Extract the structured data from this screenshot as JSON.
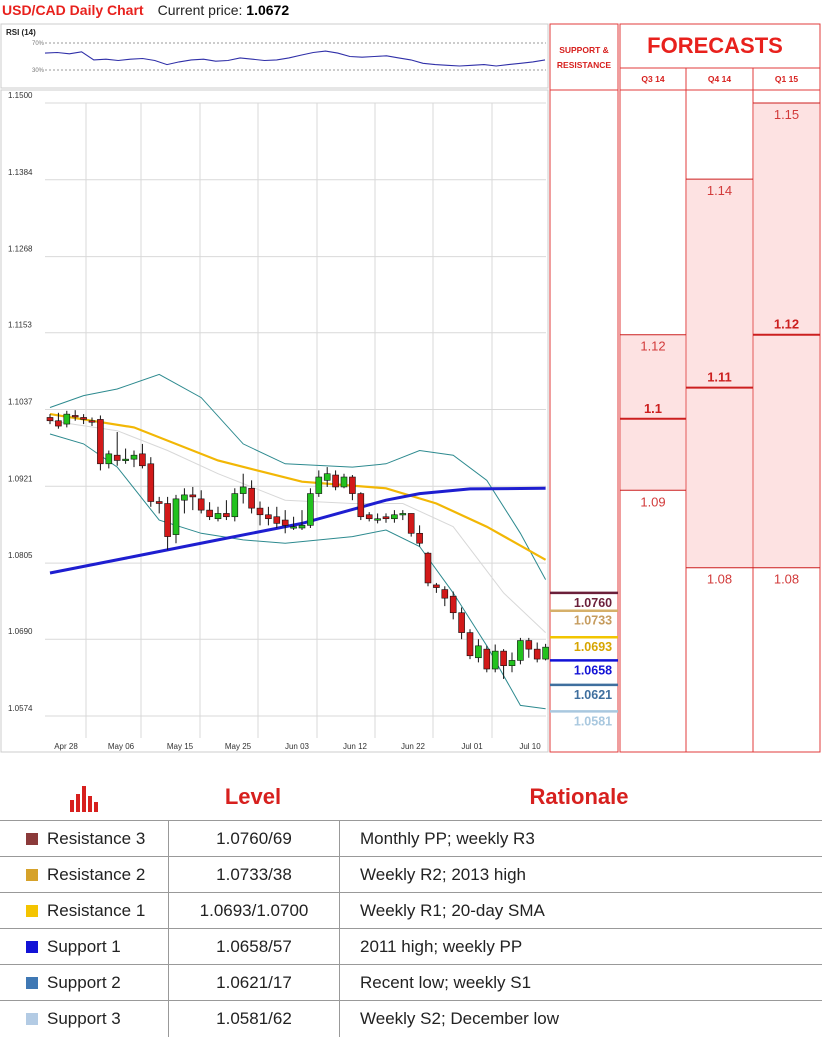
{
  "header": {
    "title": "USD/CAD Daily Chart",
    "price_label": "Current price: ",
    "price_value": "1.0672"
  },
  "rsi": {
    "label": "RSI (14)",
    "level_high": "70%",
    "level_low": "30%"
  },
  "panel": {
    "sr_title_line1": "SUPPORT &",
    "sr_title_line2": "RESISTANCE",
    "forecasts_title": "FORECASTS"
  },
  "chart_data": {
    "type": "candlestick",
    "y_ticks": [
      "1.1500",
      "1.1384",
      "1.1268",
      "1.1153",
      "1.1037",
      "1.0921",
      "1.0805",
      "1.0690",
      "1.0574"
    ],
    "ylim": [
      1.0557,
      1.1515
    ],
    "x_labels": [
      "Apr 28",
      "May 06",
      "May 15",
      "May 25",
      "Jun 03",
      "Jun 12",
      "Jun 22",
      "Jul 01",
      "Jul 10"
    ],
    "candles": [
      [
        1.1025,
        1.103,
        1.1015,
        1.102
      ],
      [
        1.102,
        1.1032,
        1.1008,
        1.1012
      ],
      [
        1.1015,
        1.1035,
        1.101,
        1.103
      ],
      [
        1.1028,
        1.1036,
        1.102,
        1.1026
      ],
      [
        1.1025,
        1.103,
        1.1015,
        1.1022
      ],
      [
        1.102,
        1.1025,
        1.1012,
        1.1018
      ],
      [
        1.1022,
        1.1028,
        1.0945,
        1.0955
      ],
      [
        1.0955,
        1.0975,
        1.0948,
        1.097
      ],
      [
        1.0968,
        1.1003,
        1.0952,
        1.096
      ],
      [
        1.0962,
        1.0978,
        1.0955,
        1.0962
      ],
      [
        1.0962,
        1.0975,
        1.095,
        1.0968
      ],
      [
        1.097,
        1.0985,
        1.0948,
        1.0952
      ],
      [
        1.0955,
        1.0965,
        1.089,
        1.0898
      ],
      [
        1.0898,
        1.0905,
        1.088,
        1.0895
      ],
      [
        1.0895,
        1.0905,
        1.0825,
        1.0845
      ],
      [
        1.0848,
        1.0908,
        1.0835,
        1.0902
      ],
      [
        1.09,
        1.0918,
        1.088,
        1.0908
      ],
      [
        1.0908,
        1.092,
        1.0885,
        1.0905
      ],
      [
        1.0902,
        1.0915,
        1.088,
        1.0885
      ],
      [
        1.0885,
        1.0897,
        1.087,
        1.0875
      ],
      [
        1.0872,
        1.089,
        1.0868,
        1.088
      ],
      [
        1.088,
        1.09,
        1.087,
        1.0875
      ],
      [
        1.0875,
        1.0918,
        1.0868,
        1.091
      ],
      [
        1.091,
        1.094,
        1.0895,
        1.092
      ],
      [
        1.0918,
        1.093,
        1.088,
        1.0888
      ],
      [
        1.0888,
        1.0898,
        1.0862,
        1.0878
      ],
      [
        1.0878,
        1.089,
        1.0862,
        1.0872
      ],
      [
        1.0875,
        1.089,
        1.0858,
        1.0865
      ],
      [
        1.087,
        1.0885,
        1.085,
        1.0862
      ],
      [
        1.086,
        1.0875,
        1.0855,
        1.086
      ],
      [
        1.0858,
        1.0885,
        1.0855,
        1.0862
      ],
      [
        1.0862,
        1.0918,
        1.0858,
        1.091
      ],
      [
        1.091,
        1.0945,
        1.0905,
        1.0935
      ],
      [
        1.093,
        1.095,
        1.092,
        1.094
      ],
      [
        1.0938,
        1.0945,
        1.0915,
        1.092
      ],
      [
        1.092,
        1.094,
        1.0918,
        1.0935
      ],
      [
        1.0935,
        1.0938,
        1.09,
        1.091
      ],
      [
        1.091,
        1.0912,
        1.087,
        1.0875
      ],
      [
        1.0878,
        1.0882,
        1.0868,
        1.0872
      ],
      [
        1.0872,
        1.088,
        1.0865,
        1.0872
      ],
      [
        1.0875,
        1.088,
        1.0866,
        1.0872
      ],
      [
        1.0872,
        1.0885,
        1.0866,
        1.0878
      ],
      [
        1.0878,
        1.0885,
        1.087,
        1.088
      ],
      [
        1.088,
        1.088,
        1.0845,
        1.085
      ],
      [
        1.085,
        1.0862,
        1.083,
        1.0835
      ],
      [
        1.082,
        1.0822,
        1.077,
        1.0775
      ],
      [
        1.0772,
        1.0775,
        1.076,
        1.0768
      ],
      [
        1.0765,
        1.077,
        1.074,
        1.0752
      ],
      [
        1.0755,
        1.0762,
        1.072,
        1.073
      ],
      [
        1.073,
        1.0738,
        1.069,
        1.07
      ],
      [
        1.07,
        1.0705,
        1.066,
        1.0665
      ],
      [
        1.0662,
        1.069,
        1.0655,
        1.068
      ],
      [
        1.0675,
        1.068,
        1.064,
        1.0645
      ],
      [
        1.0645,
        1.0682,
        1.064,
        1.0672
      ],
      [
        1.0672,
        1.0675,
        1.063,
        1.065
      ],
      [
        1.065,
        1.067,
        1.064,
        1.0658
      ],
      [
        1.0658,
        1.0692,
        1.0652,
        1.0688
      ],
      [
        1.0688,
        1.0692,
        1.0662,
        1.0675
      ],
      [
        1.0675,
        1.0685,
        1.0655,
        1.066
      ],
      [
        1.066,
        1.0683,
        1.0658,
        1.0678
      ]
    ],
    "sma200": [
      [
        0,
        1.079
      ],
      [
        10,
        1.0815
      ],
      [
        20,
        1.084
      ],
      [
        30,
        1.0865
      ],
      [
        40,
        1.09
      ],
      [
        44,
        1.091
      ],
      [
        50,
        1.0917
      ],
      [
        59,
        1.0918
      ]
    ],
    "sma_yellow": [
      [
        0,
        1.103
      ],
      [
        10,
        1.101
      ],
      [
        20,
        1.096
      ],
      [
        30,
        1.0928
      ],
      [
        40,
        1.0918
      ],
      [
        46,
        1.0895
      ],
      [
        52,
        1.086
      ],
      [
        59,
        1.081
      ]
    ],
    "bb_upper": [
      [
        0,
        1.104
      ],
      [
        4,
        1.1058
      ],
      [
        8,
        1.1068
      ],
      [
        13,
        1.109
      ],
      [
        18,
        1.1055
      ],
      [
        23,
        1.0985
      ],
      [
        28,
        1.0955
      ],
      [
        36,
        1.095
      ],
      [
        40,
        1.0955
      ],
      [
        44,
        1.0975
      ],
      [
        48,
        1.0968
      ],
      [
        52,
        1.093
      ],
      [
        56,
        1.085
      ],
      [
        59,
        1.078
      ]
    ],
    "bb_lower": [
      [
        0,
        1.1
      ],
      [
        4,
        1.0985
      ],
      [
        8,
        1.095
      ],
      [
        13,
        1.087
      ],
      [
        18,
        1.085
      ],
      [
        23,
        1.084
      ],
      [
        28,
        1.0835
      ],
      [
        36,
        1.0845
      ],
      [
        40,
        1.0855
      ],
      [
        44,
        1.083
      ],
      [
        48,
        1.076
      ],
      [
        52,
        1.068
      ],
      [
        56,
        1.059
      ],
      [
        59,
        1.0585
      ]
    ],
    "bb_middle": [
      [
        0,
        1.102
      ],
      [
        8,
        1.1005
      ],
      [
        14,
        1.0975
      ],
      [
        20,
        1.094
      ],
      [
        28,
        1.09
      ],
      [
        36,
        1.0895
      ],
      [
        42,
        1.0895
      ],
      [
        48,
        1.086
      ],
      [
        54,
        1.076
      ],
      [
        59,
        1.07
      ]
    ],
    "rsi_values": [
      55,
      56,
      54,
      57,
      45,
      46,
      44,
      46,
      47,
      44,
      38,
      42,
      45,
      46,
      43,
      44,
      48,
      46,
      44,
      45,
      48,
      52,
      56,
      58,
      55,
      50,
      49,
      50,
      51,
      48,
      45,
      40,
      38,
      37,
      36,
      37,
      38,
      36,
      38,
      40,
      42,
      45
    ],
    "sr_levels": [
      {
        "label": "1.0760",
        "value": 1.076,
        "color": "#6b1f3a",
        "text": "#6b1f3a"
      },
      {
        "label": "1.0733",
        "value": 1.0733,
        "color": "#d6b06a",
        "text": "#c69c5e"
      },
      {
        "label": "1.0693",
        "value": 1.0693,
        "color": "#f2c500",
        "text": "#d7a500"
      },
      {
        "label": "1.0658",
        "value": 1.0658,
        "color": "#1212d6",
        "text": "#1212d6"
      },
      {
        "label": "1.0621",
        "value": 1.0621,
        "color": "#3f6f9e",
        "text": "#3f6f9e"
      },
      {
        "label": "1.0581",
        "value": 1.0581,
        "color": "#a9c8df",
        "text": "#a9c8df"
      }
    ],
    "forecasts": [
      {
        "quarter": "Q3 14",
        "labels": [
          {
            "text": "1.12",
            "value": 1.115,
            "bold": false
          },
          {
            "text": "1.1",
            "value": 1.1023,
            "bold": true
          },
          {
            "text": "1.09",
            "value": 1.0915,
            "bold": false
          }
        ]
      },
      {
        "quarter": "Q4 14",
        "labels": [
          {
            "text": "1.14",
            "value": 1.1385,
            "bold": false
          },
          {
            "text": "1.11",
            "value": 1.107,
            "bold": true
          },
          {
            "text": "1.08",
            "value": 1.0798,
            "bold": false
          }
        ]
      },
      {
        "quarter": "Q1 15",
        "labels": [
          {
            "text": "1.15",
            "value": 1.15,
            "bold": false
          },
          {
            "text": "1.12",
            "value": 1.115,
            "bold": true
          },
          {
            "text": "1.08",
            "value": 1.0798,
            "bold": false
          }
        ]
      }
    ]
  },
  "table": {
    "headers": {
      "level": "Level",
      "rationale": "Rationale"
    },
    "rows": [
      {
        "name": "Resistance 3",
        "color": "#8b3a3a",
        "level": "1.0760/69",
        "rationale": "Monthly PP; weekly R3"
      },
      {
        "name": "Resistance 2",
        "color": "#d6a22a",
        "level": "1.0733/38",
        "rationale": "Weekly R2; 2013 high"
      },
      {
        "name": "Resistance 1",
        "color": "#f4c400",
        "level": "1.0693/1.0700",
        "rationale": "Weekly R1; 20-day SMA"
      },
      {
        "name": "Support 1",
        "color": "#1212d6",
        "level": "1.0658/57",
        "rationale": "2011 high; weekly PP"
      },
      {
        "name": "Support 2",
        "color": "#3f78b4",
        "level": "1.0621/17",
        "rationale": "Recent low; weekly S1"
      },
      {
        "name": "Support 3",
        "color": "#b3cbe4",
        "level": "1.0581/62",
        "rationale": "Weekly S2; December low"
      }
    ]
  }
}
